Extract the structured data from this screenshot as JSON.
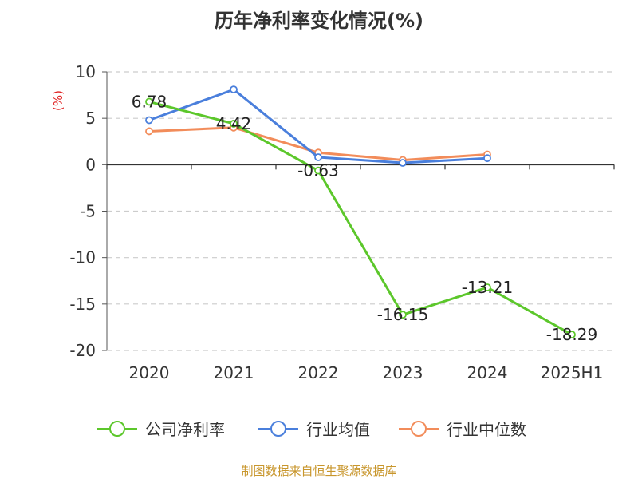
{
  "chart_data": {
    "type": "line",
    "title": "历年净利率变化情况(%)",
    "ylabel": "(%)",
    "categories": [
      "2020",
      "2021",
      "2022",
      "2023",
      "2024",
      "2025H1"
    ],
    "ylim": [
      -20,
      10
    ],
    "yticks": [
      10,
      5,
      0,
      -5,
      -10,
      -15,
      -20
    ],
    "grid": true,
    "legend_position": "bottom",
    "series": [
      {
        "name": "公司净利率",
        "color": "#5cc72b",
        "values": [
          6.78,
          4.42,
          -0.63,
          -16.15,
          -13.21,
          -18.29
        ],
        "labels": [
          "6.78",
          "4.42",
          "-0.63",
          "-16.15",
          "-13.21",
          "-18.29"
        ]
      },
      {
        "name": "行业均值",
        "color": "#4a7fdc",
        "values": [
          4.8,
          8.1,
          0.8,
          0.2,
          0.7,
          null
        ]
      },
      {
        "name": "行业中位数",
        "color": "#f28c5a",
        "values": [
          3.6,
          4.0,
          1.3,
          0.5,
          1.1,
          null
        ]
      }
    ]
  },
  "footer": {
    "source": "制图数据来自恒生聚源数据库"
  }
}
